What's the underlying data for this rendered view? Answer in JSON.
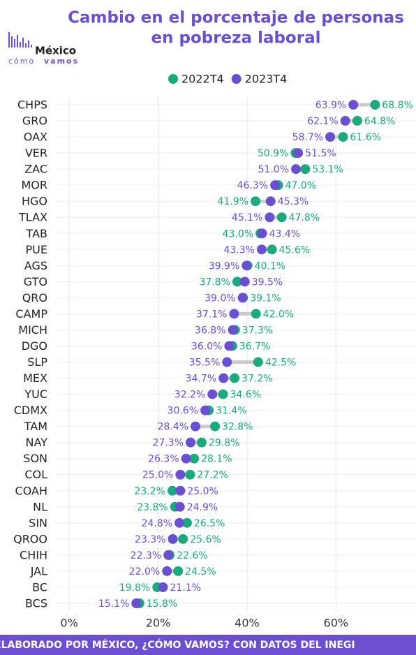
{
  "logo": {
    "name": "México",
    "tagline_a": "cómo",
    "tagline_b": "vamos"
  },
  "footer": "ELABORADO POR MÉXICO, ¿CÓMO VAMOS? CON DATOS DEL INEGI",
  "chart_data": {
    "type": "dumbbell",
    "title": [
      "Cambio en el porcentaje de personas",
      "en pobreza laboral"
    ],
    "categories": [
      "CHPS",
      "GRO",
      "OAX",
      "VER",
      "ZAC",
      "MOR",
      "HGO",
      "TLAX",
      "TAB",
      "PUE",
      "AGS",
      "GTO",
      "QRO",
      "CAMP",
      "MICH",
      "DGO",
      "SLP",
      "MEX",
      "YUC",
      "CDMX",
      "TAM",
      "NAY",
      "SON",
      "COL",
      "COAH",
      "NL",
      "SIN",
      "QROO",
      "CHIH",
      "JAL",
      "BC",
      "BCS"
    ],
    "series": [
      {
        "name": "2022T4",
        "color": "#1aaa7e",
        "values": [
          68.8,
          64.8,
          61.6,
          50.9,
          53.1,
          47.0,
          41.9,
          47.8,
          43.0,
          45.6,
          40.1,
          37.8,
          39.1,
          42.0,
          37.3,
          36.7,
          42.5,
          37.2,
          34.6,
          31.4,
          32.8,
          29.8,
          28.1,
          27.2,
          23.2,
          23.8,
          26.5,
          25.6,
          22.6,
          24.5,
          19.8,
          15.8
        ],
        "value_labels": [
          "68.8%",
          "64.8%",
          "61.6%",
          "50.9%",
          "53.1%",
          "47.0%",
          "41.9%",
          "47.8%",
          "43.0%",
          "45.6%",
          "40.1%",
          "37.8%",
          "39.1%",
          "42.0%",
          "37.3%",
          "36.7%",
          "42.5%",
          "37.2%",
          "34.6%",
          "31.4%",
          "32.8%",
          "29.8%",
          "28.1%",
          "27.2%",
          "23.2%",
          "23.8%",
          "26.5%",
          "25.6%",
          "22.6%",
          "24.5%",
          "19.8%",
          "15.8%"
        ]
      },
      {
        "name": "2023T4",
        "color": "#6a4fd0",
        "values": [
          63.9,
          62.1,
          58.7,
          51.5,
          51.0,
          46.3,
          45.3,
          45.1,
          43.4,
          43.3,
          39.9,
          39.5,
          39.0,
          37.1,
          36.8,
          36.0,
          35.5,
          34.7,
          32.2,
          30.6,
          28.4,
          27.3,
          26.3,
          25.0,
          25.0,
          24.9,
          24.8,
          23.3,
          22.3,
          22.0,
          21.1,
          15.1
        ],
        "value_labels": [
          "63.9%",
          "62.1%",
          "58.7%",
          "51.5%",
          "51.0%",
          "46.3%",
          "45.3%",
          "45.1%",
          "43.4%",
          "43.3%",
          "39.9%",
          "39.5%",
          "39.0%",
          "37.1%",
          "36.8%",
          "36.0%",
          "35.5%",
          "34.7%",
          "32.2%",
          "30.6%",
          "28.4%",
          "27.3%",
          "26.3%",
          "25.0%",
          "25.0%",
          "24.9%",
          "24.8%",
          "23.3%",
          "22.3%",
          "22.0%",
          "21.1%",
          "15.1%"
        ]
      }
    ],
    "xlim": [
      -3,
      78
    ],
    "xticks": [
      {
        "value": 0,
        "label": "0%"
      },
      {
        "value": 20,
        "label": "20%"
      },
      {
        "value": 40,
        "label": "40%"
      },
      {
        "value": 60,
        "label": "60%"
      }
    ],
    "grid": true,
    "legend": "top"
  }
}
